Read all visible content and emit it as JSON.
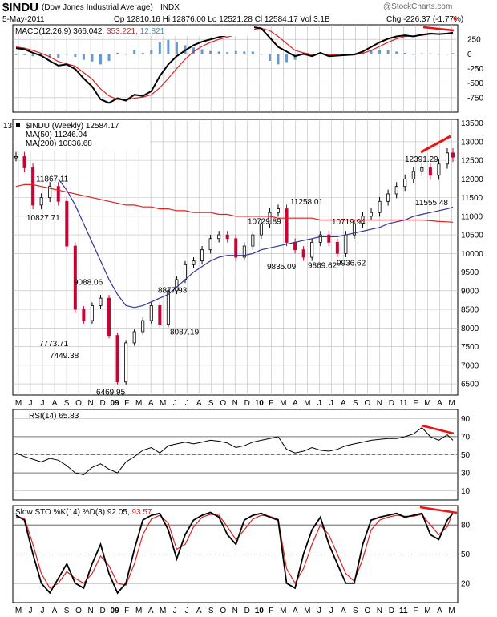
{
  "header": {
    "symbol": "$INDU",
    "name": "(Dow Jones Industrial Average)",
    "exchange": "INDX",
    "brand": "@StockCharts.com",
    "date": "5-May-2011",
    "quote": "Op 12810.16  Hi 12876.00  Lo 12521.28  Cl 12584.17  Vol 3.1B",
    "change": "Chg -226.37 (-1.77%)",
    "change_arrow": "▼"
  },
  "colors": {
    "up": "#000000",
    "down": "#cc0033",
    "ma50": "#333399",
    "ma200": "#dd2222",
    "macd_hist": "#6699cc",
    "trend_annotation": "#ee1111"
  },
  "chart_data": [
    {
      "type": "line",
      "panel": "MACD",
      "legend": [
        {
          "text": "MACD(12,26,9) 366.042,",
          "color": "#000000"
        },
        {
          "text": "353.221,",
          "color": "#dd2222"
        },
        {
          "text": "12.821",
          "color": "#3399aa"
        }
      ],
      "ylim": [
        -1000,
        500
      ],
      "yticks": [
        250,
        0,
        -250,
        -500,
        -750
      ],
      "x": [
        0,
        3,
        6,
        9,
        12,
        15,
        18,
        21,
        24,
        27,
        30,
        33,
        36,
        39,
        42,
        45,
        48,
        51,
        54,
        57,
        60,
        63,
        66,
        69,
        72,
        75,
        78,
        81,
        84,
        87,
        90,
        93,
        96,
        99,
        102,
        105,
        108,
        111,
        114,
        117,
        120,
        123,
        126,
        129,
        132,
        135,
        138,
        141,
        144,
        147,
        150,
        153,
        155
      ],
      "series": [
        {
          "name": "MACD",
          "values": [
            100,
            80,
            20,
            -30,
            -120,
            -200,
            -180,
            -260,
            -420,
            -560,
            -780,
            -840,
            -760,
            -800,
            -700,
            -720,
            -640,
            -380,
            -180,
            -40,
            60,
            150,
            210,
            250,
            290,
            320,
            380,
            420,
            460,
            440,
            280,
            120,
            40,
            -40,
            0,
            -40,
            20,
            -40,
            -30,
            -20,
            -10,
            40,
            120,
            200,
            260,
            300,
            320,
            300,
            330,
            350,
            340,
            350,
            366
          ]
        },
        {
          "name": "Signal",
          "values": [
            120,
            100,
            60,
            10,
            -50,
            -130,
            -170,
            -210,
            -320,
            -430,
            -600,
            -720,
            -780,
            -790,
            -760,
            -740,
            -700,
            -580,
            -420,
            -250,
            -90,
            40,
            130,
            200,
            250,
            290,
            330,
            380,
            420,
            440,
            400,
            300,
            180,
            60,
            20,
            -10,
            0,
            -10,
            -20,
            -25,
            -15,
            10,
            60,
            130,
            200,
            260,
            300,
            310,
            320,
            340,
            345,
            348,
            353
          ]
        },
        {
          "name": "Histogram",
          "values": [
            -20,
            -20,
            -40,
            -40,
            -70,
            -70,
            -10,
            -50,
            -100,
            -130,
            -180,
            -120,
            20,
            -10,
            60,
            20,
            60,
            200,
            240,
            210,
            150,
            110,
            80,
            50,
            40,
            30,
            50,
            40,
            40,
            0,
            -120,
            -180,
            -140,
            -100,
            -20,
            -30,
            20,
            -30,
            -10,
            5,
            5,
            30,
            60,
            70,
            60,
            40,
            20,
            -10,
            10,
            10,
            -5,
            2,
            13
          ]
        }
      ]
    },
    {
      "type": "line",
      "panel": "Price",
      "legend": [
        {
          "text": "$INDU (Weekly) 12584.17",
          "color": "#000000"
        },
        {
          "text": "MA(50) 11246.04",
          "color": "#333399"
        },
        {
          "text": "MA(200) 10836.68",
          "color": "#dd2222"
        }
      ],
      "ylim": [
        6200,
        13600
      ],
      "yticks": [
        13500,
        13000,
        12500,
        12000,
        11500,
        11000,
        10500,
        10000,
        9500,
        9000,
        8500,
        8000,
        7500,
        7000,
        6500
      ],
      "x": [
        0,
        3,
        6,
        9,
        12,
        15,
        18,
        21,
        24,
        27,
        30,
        33,
        36,
        39,
        42,
        45,
        48,
        51,
        54,
        57,
        60,
        63,
        66,
        69,
        72,
        75,
        78,
        81,
        84,
        87,
        90,
        93,
        96,
        99,
        102,
        105,
        108,
        111,
        114,
        117,
        120,
        123,
        126,
        129,
        132,
        135,
        138,
        141,
        144,
        147,
        150,
        153,
        155
      ],
      "series": [
        {
          "name": "$INDU",
          "values": [
            12600,
            12300,
            11300,
            11500,
            11800,
            11400,
            10200,
            8500,
            8200,
            8600,
            8800,
            7800,
            6550,
            7600,
            7900,
            8200,
            8600,
            8100,
            9000,
            9300,
            9700,
            9800,
            10100,
            10400,
            10500,
            10400,
            9900,
            10200,
            10500,
            10800,
            11100,
            11200,
            10300,
            10100,
            9900,
            10300,
            10500,
            10300,
            10000,
            10500,
            10800,
            11000,
            11100,
            11400,
            11600,
            11800,
            12000,
            12200,
            12300,
            12100,
            12400,
            12700,
            12584
          ]
        },
        {
          "name": "MA(50)",
          "values": [
            null,
            null,
            null,
            null,
            null,
            12000,
            11700,
            11300,
            10800,
            10300,
            9800,
            9300,
            8900,
            8600,
            8550,
            8600,
            8700,
            8800,
            8900,
            9100,
            9300,
            9500,
            9650,
            9800,
            9900,
            9950,
            9950,
            9950,
            10000,
            10100,
            10150,
            10200,
            10250,
            10300,
            10350,
            10400,
            10450,
            10450,
            10450,
            10500,
            10550,
            10600,
            10650,
            10700,
            10800,
            10850,
            10900,
            11000,
            11050,
            11100,
            11150,
            11200,
            11246
          ]
        },
        {
          "name": "MA(200)",
          "values": [
            11800,
            11850,
            11850,
            11800,
            11750,
            11700,
            11650,
            11600,
            11550,
            11500,
            11450,
            11400,
            11350,
            11300,
            11300,
            11250,
            11250,
            11200,
            11200,
            11150,
            11150,
            11100,
            11100,
            11100,
            11050,
            11050,
            11000,
            11000,
            11000,
            11000,
            11000,
            10950,
            10950,
            10950,
            10950,
            10950,
            10900,
            10900,
            10900,
            10900,
            10900,
            10900,
            10900,
            10900,
            10900,
            10900,
            10900,
            10900,
            10900,
            10880,
            10860,
            10850,
            10837
          ]
        }
      ],
      "annotations": [
        "11867.11",
        "10827.71",
        "9088.06",
        "7773.71",
        "7449.38",
        "6469.95",
        "8877.93",
        "8087.19",
        "10729.89",
        "9835.09",
        "11258.01",
        "9869.62",
        "10719.94",
        "9936.62",
        "12391.29",
        "11555.48"
      ],
      "axis_top_label": "13"
    },
    {
      "type": "line",
      "panel": "RSI",
      "legend": [
        {
          "text": "RSI(14) 65.83",
          "color": "#000000"
        }
      ],
      "ylim": [
        0,
        100
      ],
      "yticks": [
        90,
        70,
        50,
        30,
        10
      ],
      "x": [
        0,
        3,
        6,
        9,
        12,
        15,
        18,
        21,
        24,
        27,
        30,
        33,
        36,
        39,
        42,
        45,
        48,
        51,
        54,
        57,
        60,
        63,
        66,
        69,
        72,
        75,
        78,
        81,
        84,
        87,
        90,
        93,
        96,
        99,
        102,
        105,
        108,
        111,
        114,
        117,
        120,
        123,
        126,
        129,
        132,
        135,
        138,
        141,
        144,
        147,
        150,
        153,
        155
      ],
      "series": [
        {
          "name": "RSI(14)",
          "values": [
            52,
            48,
            45,
            42,
            46,
            44,
            38,
            30,
            28,
            36,
            40,
            34,
            30,
            42,
            48,
            55,
            58,
            52,
            60,
            62,
            64,
            62,
            64,
            66,
            65,
            63,
            58,
            60,
            64,
            66,
            68,
            70,
            56,
            52,
            54,
            58,
            55,
            54,
            56,
            60,
            62,
            64,
            66,
            67,
            68,
            68,
            70,
            73,
            80,
            70,
            66,
            72,
            66
          ]
        }
      ]
    },
    {
      "type": "line",
      "panel": "Slow STO",
      "legend": [
        {
          "text": "Slow STO %K(14) %D(3) 92.05,",
          "color": "#000000"
        },
        {
          "text": "93.57",
          "color": "#dd2222"
        }
      ],
      "ylim": [
        0,
        100
      ],
      "yticks": [
        80,
        50,
        20
      ],
      "x": [
        0,
        3,
        6,
        9,
        12,
        15,
        18,
        21,
        24,
        27,
        30,
        33,
        36,
        39,
        42,
        45,
        48,
        51,
        54,
        57,
        60,
        63,
        66,
        69,
        72,
        75,
        78,
        81,
        84,
        87,
        90,
        93,
        96,
        99,
        102,
        105,
        108,
        111,
        114,
        117,
        120,
        123,
        126,
        129,
        132,
        135,
        138,
        141,
        144,
        147,
        150,
        153,
        155
      ],
      "series": [
        {
          "name": "%K",
          "values": [
            90,
            85,
            50,
            20,
            10,
            25,
            40,
            20,
            15,
            40,
            60,
            30,
            10,
            20,
            55,
            85,
            90,
            92,
            75,
            45,
            70,
            85,
            90,
            93,
            88,
            70,
            60,
            85,
            90,
            92,
            88,
            85,
            20,
            15,
            50,
            75,
            88,
            60,
            40,
            20,
            20,
            60,
            85,
            88,
            90,
            92,
            88,
            90,
            92,
            70,
            65,
            85,
            92
          ]
        },
        {
          "name": "%D",
          "values": [
            88,
            87,
            60,
            30,
            15,
            20,
            32,
            25,
            20,
            30,
            48,
            38,
            20,
            18,
            40,
            70,
            86,
            90,
            82,
            55,
            60,
            78,
            88,
            91,
            90,
            78,
            65,
            75,
            86,
            90,
            89,
            86,
            35,
            20,
            35,
            60,
            80,
            70,
            50,
            30,
            22,
            45,
            75,
            85,
            88,
            90,
            89,
            89,
            91,
            80,
            70,
            78,
            94
          ]
        }
      ]
    }
  ],
  "xaxis": {
    "labels": [
      "M",
      "J",
      "J",
      "A",
      "S",
      "O",
      "N",
      "D",
      "09",
      "F",
      "M",
      "A",
      "M",
      "J",
      "J",
      "A",
      "S",
      "O",
      "N",
      "D",
      "10",
      "F",
      "M",
      "A",
      "M",
      "J",
      "J",
      "A",
      "S",
      "O",
      "N",
      "D",
      "11",
      "F",
      "M",
      "A",
      "M"
    ]
  }
}
